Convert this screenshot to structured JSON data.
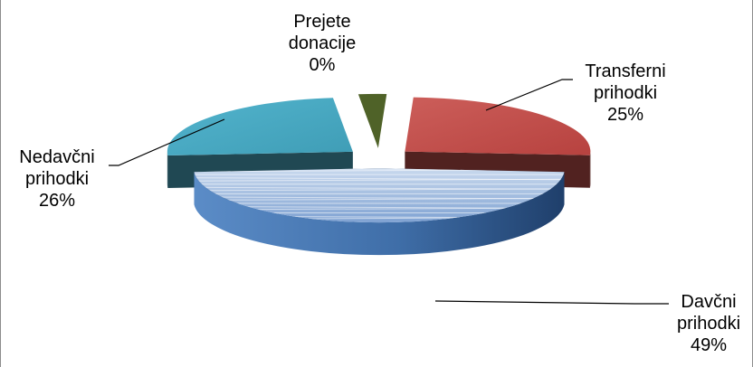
{
  "chart_data": {
    "type": "pie",
    "style": "3d-exploded",
    "legend": "none",
    "slices": [
      {
        "label_lines": [
          "Davčni",
          "prihodki"
        ],
        "percent_label": "49%",
        "value": 49,
        "color": "#4f81bd"
      },
      {
        "label_lines": [
          "Nedavčni",
          "prihodki"
        ],
        "percent_label": "26%",
        "value": 26,
        "color": "#c0504d"
      },
      {
        "label_lines": [
          "Prejete",
          "donacije"
        ],
        "percent_label": "0%",
        "value": 0,
        "color": "#4f6228"
      },
      {
        "label_lines": [
          "Transferni",
          "prihodki"
        ],
        "percent_label": "25%",
        "value": 25,
        "color": "#4bacc6"
      }
    ]
  }
}
